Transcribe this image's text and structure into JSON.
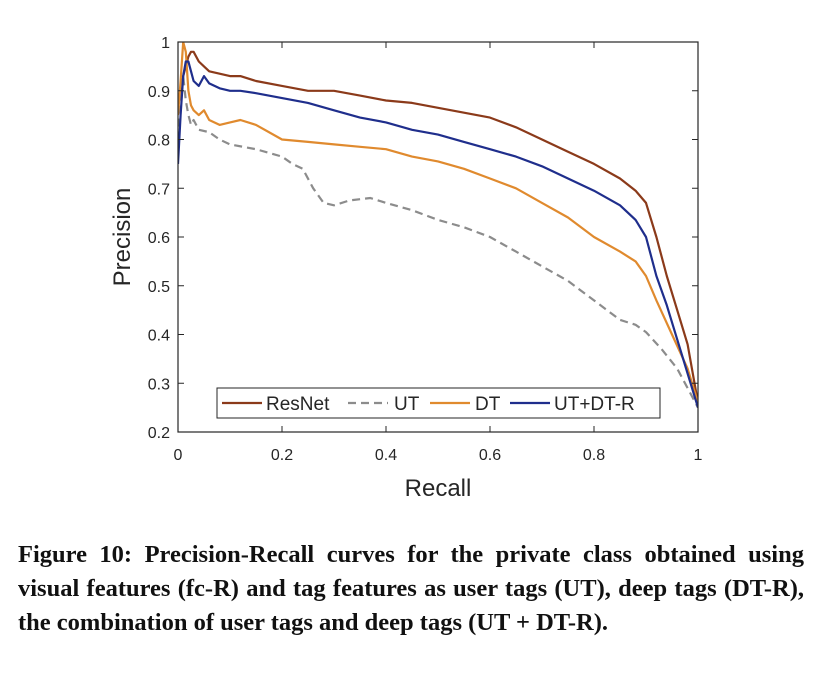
{
  "chart_data": {
    "type": "line",
    "xlabel": "Recall",
    "ylabel": "Precision",
    "xlim": [
      0,
      1
    ],
    "ylim": [
      0.2,
      1
    ],
    "xticks": [
      0,
      0.2,
      0.4,
      0.6,
      0.8,
      1
    ],
    "xtick_labels": [
      "0",
      "0.2",
      "0.4",
      "0.6",
      "0.8",
      "1"
    ],
    "yticks": [
      0.2,
      0.3,
      0.4,
      0.5,
      0.6,
      0.7,
      0.8,
      0.9,
      1
    ],
    "ytick_labels": [
      "0.2",
      "0.3",
      "0.4",
      "0.5",
      "0.6",
      "0.7",
      "0.8",
      "0.9",
      "1"
    ],
    "grid": false,
    "legend_position": "bottom",
    "series": [
      {
        "name": "ResNet",
        "color": "#8B3A1A",
        "dash": "solid",
        "x": [
          0,
          0.005,
          0.01,
          0.015,
          0.02,
          0.025,
          0.03,
          0.04,
          0.05,
          0.06,
          0.08,
          0.1,
          0.12,
          0.15,
          0.2,
          0.25,
          0.3,
          0.35,
          0.4,
          0.45,
          0.5,
          0.55,
          0.6,
          0.65,
          0.7,
          0.75,
          0.8,
          0.85,
          0.88,
          0.9,
          0.92,
          0.94,
          0.96,
          0.98,
          1.0
        ],
        "y": [
          0.88,
          0.9,
          0.93,
          0.95,
          0.97,
          0.98,
          0.98,
          0.96,
          0.95,
          0.94,
          0.935,
          0.93,
          0.93,
          0.92,
          0.91,
          0.9,
          0.9,
          0.89,
          0.88,
          0.875,
          0.865,
          0.855,
          0.845,
          0.825,
          0.8,
          0.775,
          0.75,
          0.72,
          0.695,
          0.67,
          0.6,
          0.52,
          0.45,
          0.38,
          0.26
        ]
      },
      {
        "name": "UT",
        "color": "#8C8C8C",
        "dash": "dashed",
        "x": [
          0,
          0.005,
          0.01,
          0.015,
          0.02,
          0.025,
          0.03,
          0.04,
          0.06,
          0.08,
          0.1,
          0.15,
          0.2,
          0.22,
          0.24,
          0.26,
          0.28,
          0.3,
          0.33,
          0.37,
          0.4,
          0.45,
          0.5,
          0.55,
          0.6,
          0.65,
          0.7,
          0.75,
          0.8,
          0.85,
          0.88,
          0.9,
          0.93,
          0.96,
          1.0
        ],
        "y": [
          0.8,
          0.9,
          0.93,
          0.88,
          0.85,
          0.83,
          0.84,
          0.82,
          0.815,
          0.8,
          0.79,
          0.78,
          0.765,
          0.75,
          0.74,
          0.7,
          0.67,
          0.665,
          0.675,
          0.68,
          0.67,
          0.655,
          0.635,
          0.62,
          0.6,
          0.57,
          0.54,
          0.51,
          0.47,
          0.43,
          0.42,
          0.405,
          0.37,
          0.33,
          0.25
        ]
      },
      {
        "name": "DT",
        "color": "#E08A2E",
        "dash": "solid",
        "x": [
          0,
          0.005,
          0.01,
          0.015,
          0.02,
          0.025,
          0.03,
          0.04,
          0.05,
          0.06,
          0.08,
          0.1,
          0.12,
          0.15,
          0.2,
          0.25,
          0.3,
          0.35,
          0.4,
          0.45,
          0.5,
          0.55,
          0.6,
          0.65,
          0.7,
          0.75,
          0.8,
          0.85,
          0.88,
          0.9,
          0.92,
          0.95,
          0.98,
          1.0
        ],
        "y": [
          0.85,
          0.92,
          1.0,
          0.98,
          0.9,
          0.87,
          0.86,
          0.85,
          0.86,
          0.84,
          0.83,
          0.835,
          0.84,
          0.83,
          0.8,
          0.795,
          0.79,
          0.785,
          0.78,
          0.765,
          0.755,
          0.74,
          0.72,
          0.7,
          0.67,
          0.64,
          0.6,
          0.57,
          0.55,
          0.52,
          0.47,
          0.4,
          0.33,
          0.26
        ]
      },
      {
        "name": "UT+DT-R",
        "color": "#1F2E8C",
        "dash": "solid",
        "x": [
          0,
          0.005,
          0.01,
          0.015,
          0.02,
          0.025,
          0.03,
          0.04,
          0.05,
          0.06,
          0.08,
          0.1,
          0.12,
          0.15,
          0.2,
          0.25,
          0.3,
          0.35,
          0.4,
          0.45,
          0.5,
          0.55,
          0.6,
          0.65,
          0.7,
          0.75,
          0.8,
          0.85,
          0.88,
          0.9,
          0.92,
          0.94,
          0.96,
          0.98,
          1.0
        ],
        "y": [
          0.75,
          0.85,
          0.93,
          0.96,
          0.96,
          0.94,
          0.92,
          0.91,
          0.93,
          0.915,
          0.905,
          0.9,
          0.9,
          0.895,
          0.885,
          0.875,
          0.86,
          0.845,
          0.835,
          0.82,
          0.81,
          0.795,
          0.78,
          0.765,
          0.745,
          0.72,
          0.695,
          0.665,
          0.635,
          0.6,
          0.52,
          0.46,
          0.39,
          0.32,
          0.25
        ]
      }
    ]
  },
  "caption": {
    "label": "Figure 10:",
    "text": "Precision-Recall curves for the private class obtained using visual features (fc-R) and tag features as user tags (UT), deep tags (DT-R), the combination of user tags and deep tags (UT + DT-R)."
  }
}
